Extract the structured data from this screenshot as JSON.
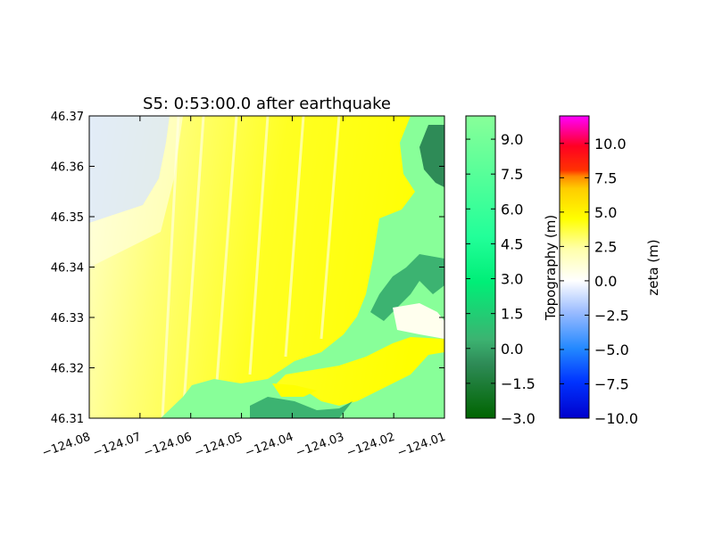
{
  "chart_data": {
    "type": "heatmap",
    "title": "S5: 0:53:00.0 after earthquake",
    "xlim": [
      -124.08,
      -124.01
    ],
    "ylim": [
      46.31,
      46.37
    ],
    "xticks": [
      "−124.08",
      "−124.07",
      "−124.06",
      "−124.05",
      "−124.04",
      "−124.03",
      "−124.02",
      "−124.01"
    ],
    "yticks": [
      "46.31",
      "46.32",
      "46.33",
      "46.34",
      "46.35",
      "46.36",
      "46.37"
    ],
    "xtick_values": [
      -124.08,
      -124.07,
      -124.06,
      -124.05,
      -124.04,
      -124.03,
      -124.02,
      -124.01
    ],
    "ytick_values": [
      46.31,
      46.32,
      46.33,
      46.34,
      46.35,
      46.36,
      46.37
    ],
    "grid": false,
    "colorbars": [
      {
        "label": "Topography (m)",
        "range": [
          -3.0,
          10.0
        ],
        "ticks": [
          "−3.0",
          "−1.5",
          "0.0",
          "1.5",
          "3.0",
          "4.5",
          "6.0",
          "7.5",
          "9.0"
        ],
        "tick_values": [
          -3.0,
          -1.5,
          0.0,
          1.5,
          3.0,
          4.5,
          6.0,
          7.5,
          9.0
        ],
        "colors": [
          "#006400",
          "#2e8b57",
          "#3cb371",
          "#00ee77",
          "#00ff99",
          "#33ff99",
          "#66ff99",
          "#88ff99"
        ]
      },
      {
        "label": "zeta (m)",
        "range": [
          -10.0,
          12.0
        ],
        "ticks": [
          "−10.0",
          "−7.5",
          "−5.0",
          "−2.5",
          "0.0",
          "2.5",
          "5.0",
          "7.5",
          "10.0"
        ],
        "tick_values": [
          -10.0,
          -7.5,
          -5.0,
          -2.5,
          0.0,
          2.5,
          5.0,
          7.5,
          10.0
        ],
        "colors": [
          "#0000cc",
          "#0044ff",
          "#3399ff",
          "#aaccff",
          "#ffffff",
          "#ffffaa",
          "#ffff00",
          "#ffaa00",
          "#ff3300",
          "#ff0033",
          "#ff00ff"
        ]
      }
    ],
    "land_color": "#88ff99",
    "water_color": "#ffff33"
  }
}
